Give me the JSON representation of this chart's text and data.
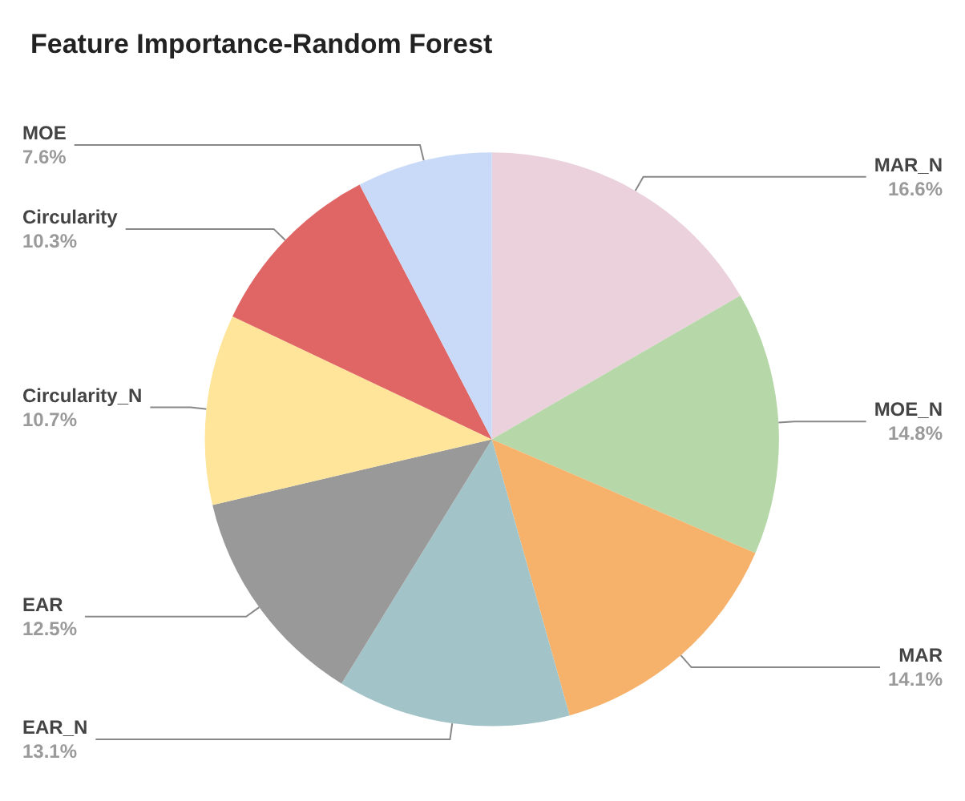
{
  "chart_data": {
    "type": "pie",
    "title": "Feature Importance-Random Forest",
    "categories": [
      "MAR_N",
      "MOE_N",
      "MAR",
      "EAR_N",
      "EAR",
      "Circularity_N",
      "Circularity",
      "MOE"
    ],
    "values": [
      16.6,
      14.8,
      14.1,
      13.1,
      12.5,
      10.7,
      10.3,
      7.6
    ],
    "colors": [
      "#ead1dc",
      "#b6d7a8",
      "#f6b26b",
      "#a2c4c9",
      "#999999",
      "#ffe599",
      "#e06666",
      "#c9daf8"
    ],
    "value_labels": [
      "16.6%",
      "14.8%",
      "14.1%",
      "13.1%",
      "12.5%",
      "10.7%",
      "10.3%",
      "7.6%"
    ],
    "legend": false
  }
}
